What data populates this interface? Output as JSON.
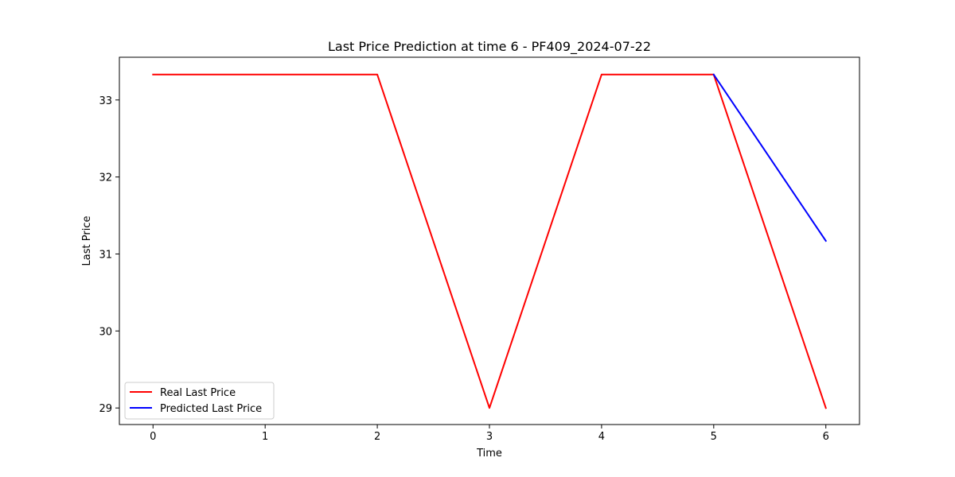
{
  "chart_data": {
    "type": "line",
    "title": "Last Price Prediction at time 6 - PF409_2024-07-22",
    "xlabel": "Time",
    "ylabel": "Last Price",
    "xlim": [
      -0.3,
      6.3
    ],
    "ylim": [
      28.785,
      33.555
    ],
    "xticks": [
      0,
      1,
      2,
      3,
      4,
      5,
      6
    ],
    "yticks": [
      29,
      30,
      31,
      32,
      33
    ],
    "grid": false,
    "legend_position": "lower-left",
    "series": [
      {
        "name": "Real Last Price",
        "color": "#ff0000",
        "x": [
          0,
          1,
          2,
          3,
          4,
          5,
          6
        ],
        "y": [
          33.33,
          33.33,
          33.33,
          29.0,
          33.33,
          33.33,
          29.0
        ]
      },
      {
        "name": "Predicted Last Price",
        "color": "#0000ff",
        "x": [
          5,
          6
        ],
        "y": [
          33.33,
          31.17
        ]
      }
    ]
  }
}
